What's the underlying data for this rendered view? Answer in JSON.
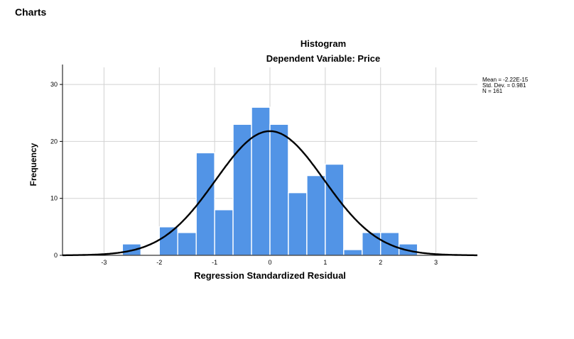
{
  "page": {
    "heading": "Charts"
  },
  "chart_data": {
    "type": "bar",
    "title": "Histogram",
    "subtitle": "Dependent Variable: Price",
    "xlabel": "Regression Standardized Residual",
    "ylabel": "Frequency",
    "xlim": [
      -3.75,
      3.75
    ],
    "ylim": [
      0,
      33
    ],
    "x_ticks": [
      -3,
      -2,
      -1,
      0,
      1,
      2,
      3
    ],
    "y_ticks": [
      0,
      10,
      20,
      30
    ],
    "grid": true,
    "bin_width": 0.333,
    "bins": [
      {
        "x0": -2.667,
        "x1": -2.333,
        "count": 2
      },
      {
        "x0": -2.0,
        "x1": -1.667,
        "count": 5
      },
      {
        "x0": -1.667,
        "x1": -1.333,
        "count": 4
      },
      {
        "x0": -1.333,
        "x1": -1.0,
        "count": 18
      },
      {
        "x0": -1.0,
        "x1": -0.667,
        "count": 8
      },
      {
        "x0": -0.667,
        "x1": -0.333,
        "count": 23
      },
      {
        "x0": -0.333,
        "x1": 0.0,
        "count": 26
      },
      {
        "x0": 0.0,
        "x1": 0.333,
        "count": 23
      },
      {
        "x0": 0.333,
        "x1": 0.667,
        "count": 11
      },
      {
        "x0": 0.667,
        "x1": 1.0,
        "count": 14
      },
      {
        "x0": 1.0,
        "x1": 1.333,
        "count": 16
      },
      {
        "x0": 1.333,
        "x1": 1.667,
        "count": 1
      },
      {
        "x0": 1.667,
        "x1": 2.0,
        "count": 4
      },
      {
        "x0": 2.0,
        "x1": 2.333,
        "count": 4
      },
      {
        "x0": 2.333,
        "x1": 2.667,
        "count": 2
      }
    ],
    "normal_curve": {
      "mean": 0,
      "std_dev": 0.981,
      "n": 161
    },
    "stats_labels": [
      "Mean = -2.22E-15",
      "Std. Dev. = 0.981",
      "N = 161"
    ],
    "colors": {
      "bar": "#5294e6",
      "bar_edge": "#ffffff",
      "curve": "#000000",
      "grid": "#d2d2d2",
      "axis": "#000000"
    }
  }
}
